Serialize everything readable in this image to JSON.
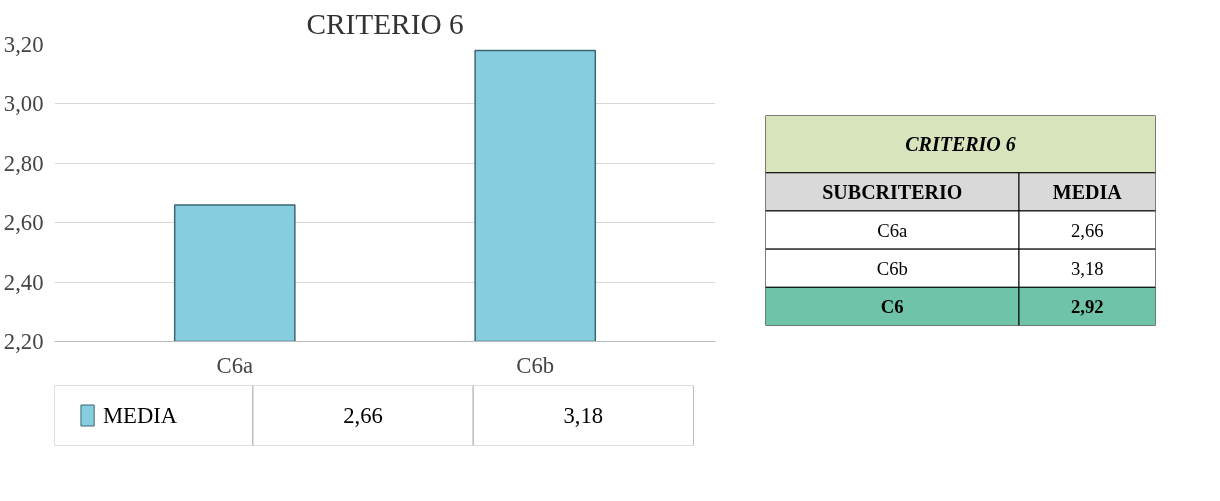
{
  "chart_data": [
    {
      "type": "bar",
      "title": "CRITERIO 6",
      "categories": [
        "C6a",
        "C6b"
      ],
      "series": [
        {
          "name": "MEDIA",
          "color": "#86cde0",
          "values": [
            2.66,
            3.18
          ],
          "value_labels": [
            "2,66",
            "3,18"
          ]
        }
      ],
      "ylim": [
        2.2,
        3.2
      ],
      "yticks": [
        {
          "value": 2.2,
          "label": "2,20"
        },
        {
          "value": 2.4,
          "label": "2,40"
        },
        {
          "value": 2.6,
          "label": "2,60"
        },
        {
          "value": 2.8,
          "label": "2,80"
        },
        {
          "value": 3.0,
          "label": "3,00"
        },
        {
          "value": 3.2,
          "label": "3,20"
        }
      ],
      "grid": "y",
      "legend": "bottom"
    },
    {
      "type": "other",
      "title": "CRITERIO 6",
      "annotations": [
        "SUBCRITERIO",
        "MEDIA"
      ],
      "categories": [
        "C6a",
        "C6b",
        "C6"
      ],
      "value_labels": [
        "2,66",
        "3,18",
        "2,92"
      ]
    }
  ]
}
